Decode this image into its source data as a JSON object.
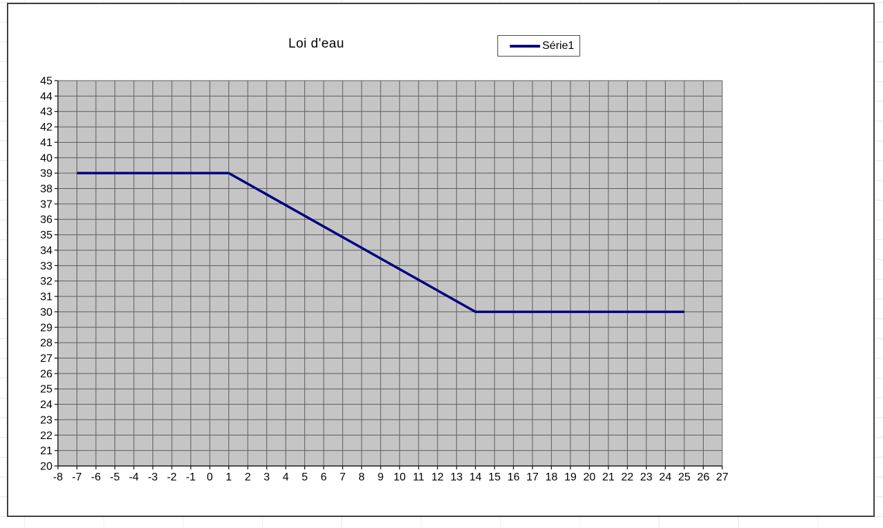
{
  "chart": {
    "title": "Loi d'eau",
    "legend": {
      "label": "Série1",
      "position": "top-right"
    }
  },
  "colors": {
    "series_line": "#000080",
    "plot_background": "#c5c5c5",
    "gridline": "#5c5c5c",
    "axis": "#1a1a1a",
    "chart_border": "#3f3f3f"
  },
  "chart_data": {
    "type": "line",
    "title": "Loi d'eau",
    "xlabel": "",
    "ylabel": "",
    "xlim": [
      -8,
      27
    ],
    "ylim": [
      20,
      45
    ],
    "grid": true,
    "legend_position": "top-right",
    "plot_bg": "#c5c5c5",
    "x_tick_labels": [
      "-8",
      "-7",
      "-6",
      "-5",
      "-4",
      "-3",
      "-2",
      "-1",
      "0",
      "1",
      "2",
      "3",
      "4",
      "5",
      "6",
      "7",
      "8",
      "9",
      "10",
      "11",
      "12",
      "13",
      "14",
      "15",
      "16",
      "17",
      "18",
      "19",
      "20",
      "21",
      "22",
      "23",
      "24",
      "25",
      "26",
      "27"
    ],
    "y_tick_labels": [
      "20",
      "21",
      "22",
      "23",
      "24",
      "25",
      "26",
      "27",
      "28",
      "29",
      "30",
      "31",
      "32",
      "33",
      "34",
      "35",
      "36",
      "37",
      "38",
      "39",
      "40",
      "41",
      "42",
      "43",
      "44",
      "45"
    ],
    "series": [
      {
        "name": "Série1",
        "color": "#000080",
        "points": [
          [
            -7,
            39
          ],
          [
            1,
            39
          ],
          [
            14,
            30
          ],
          [
            25,
            30
          ]
        ]
      }
    ]
  }
}
